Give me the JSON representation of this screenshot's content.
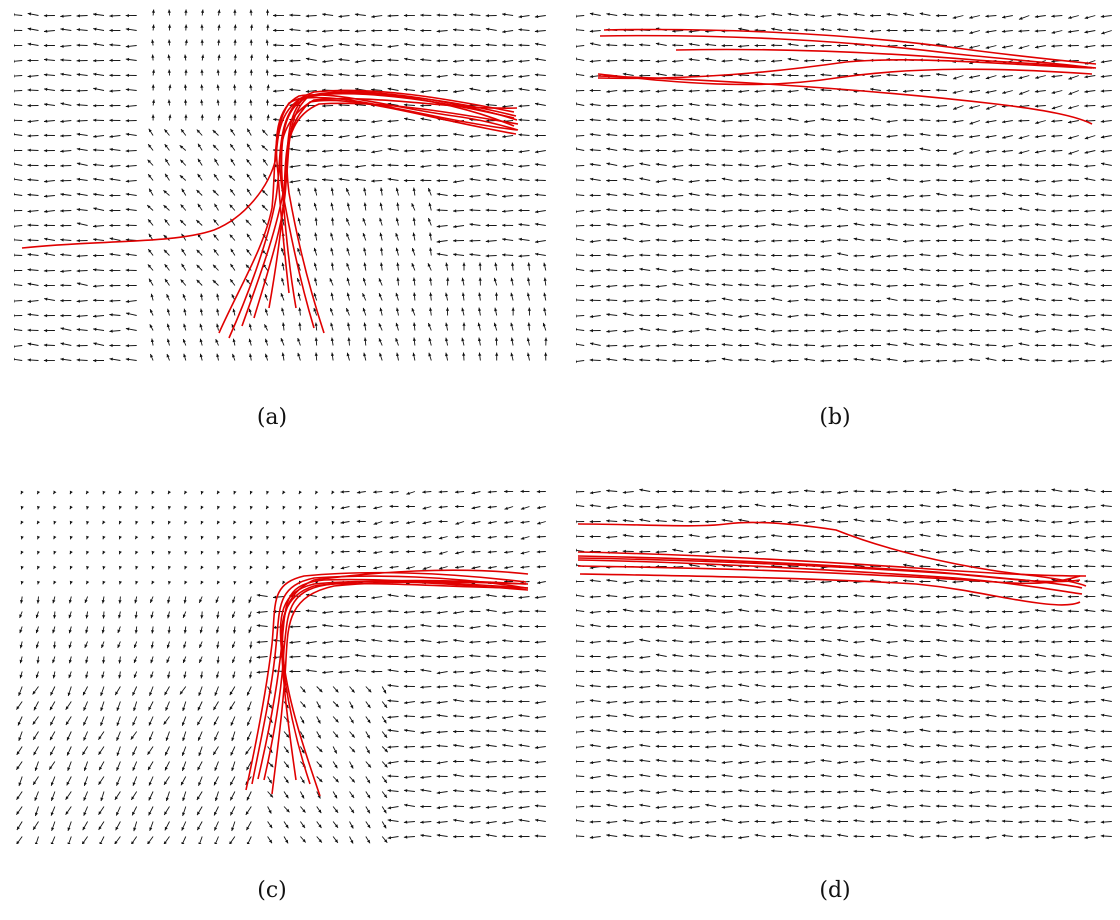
{
  "figure": {
    "panels": [
      {
        "id": "a",
        "caption": "(a)",
        "field_pattern": "turn-up-left",
        "trajectory_count": 11,
        "trajectory_color": "#e00000"
      },
      {
        "id": "b",
        "caption": "(b)",
        "field_pattern": "leftward",
        "trajectory_count": 5,
        "trajectory_color": "#e00000"
      },
      {
        "id": "c",
        "caption": "(c)",
        "field_pattern": "turn-down-left",
        "trajectory_count": 8,
        "trajectory_color": "#e00000"
      },
      {
        "id": "d",
        "caption": "(d)",
        "field_pattern": "leftward-slight-down",
        "trajectory_count": 7,
        "trajectory_color": "#e00000"
      }
    ],
    "arrow_color": "#111111"
  }
}
